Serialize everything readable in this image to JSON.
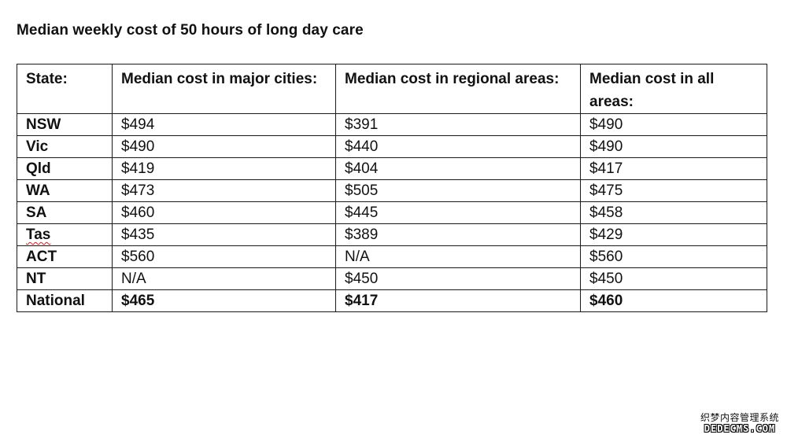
{
  "title": "Median weekly cost of 50 hours of long day care",
  "table": {
    "headers": [
      "State:",
      "Median cost in major cities:",
      "Median cost in regional areas:",
      "Median cost in all areas:"
    ],
    "rows": [
      [
        "NSW",
        "$494",
        "$391",
        "$490"
      ],
      [
        "Vic",
        "$490",
        "$440",
        "$490"
      ],
      [
        "Qld",
        "$419",
        "$404",
        "$417"
      ],
      [
        "WA",
        "$473",
        "$505",
        "$475"
      ],
      [
        "SA",
        "$460",
        "$445",
        "$458"
      ],
      [
        "Tas",
        "$435",
        "$389",
        "$429"
      ],
      [
        "ACT",
        "$560",
        "N/A",
        "$560"
      ],
      [
        "NT",
        "N/A",
        "$450",
        "$450"
      ],
      [
        "National",
        "$465",
        "$417",
        "$460"
      ]
    ]
  },
  "watermark": {
    "line1": "织梦内容管理系统",
    "line2": "DEDECMS.COM"
  }
}
